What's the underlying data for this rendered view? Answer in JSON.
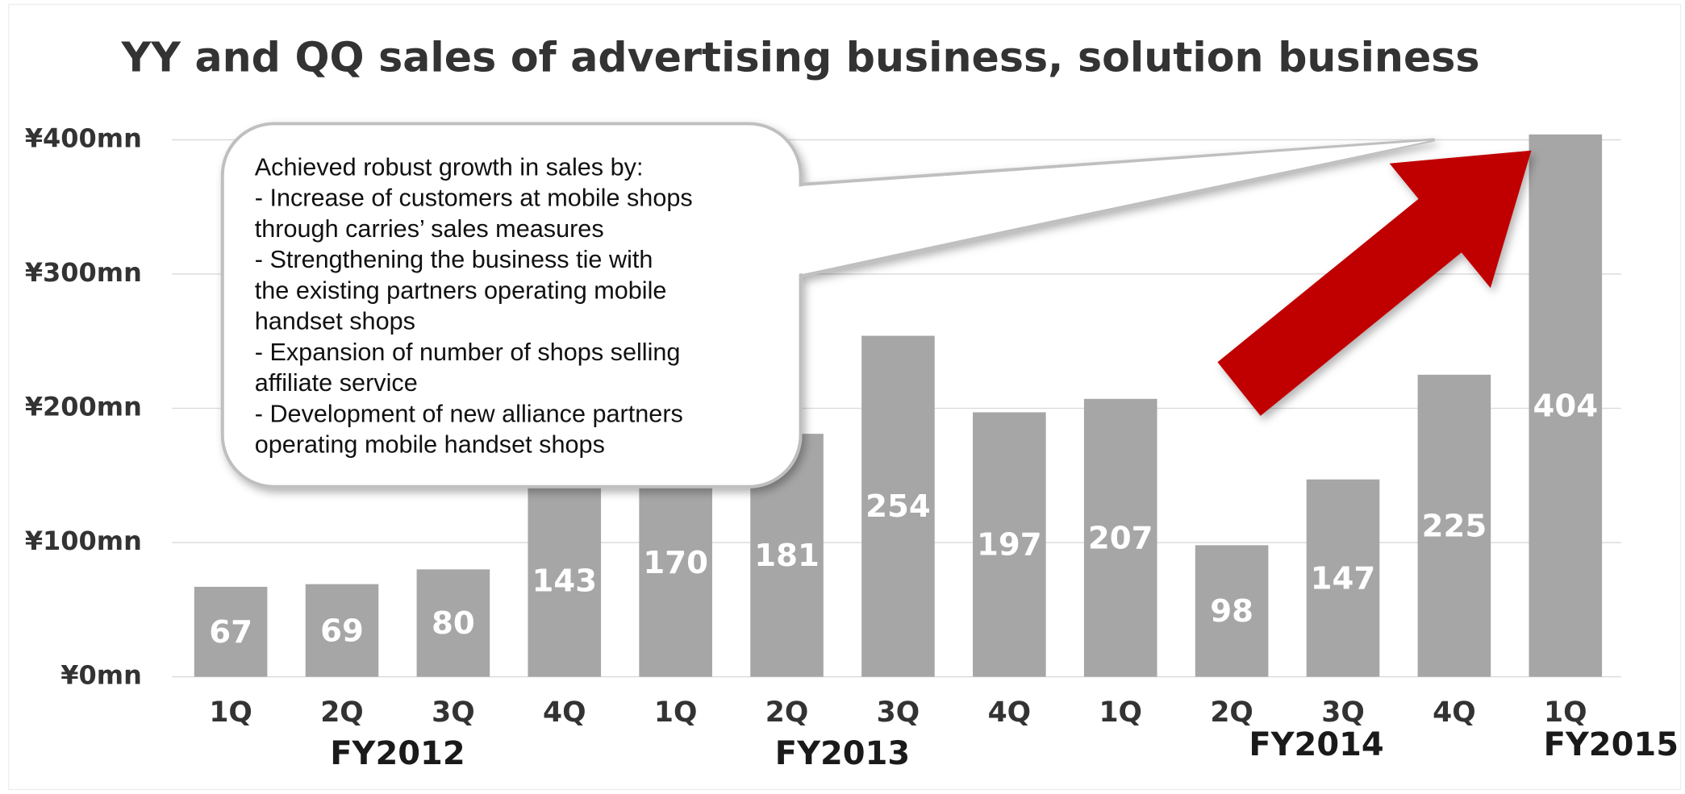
{
  "chart_data": {
    "type": "bar",
    "title": "YY and QQ sales of advertising business, solution business",
    "categories": [
      "1Q",
      "2Q",
      "3Q",
      "4Q",
      "1Q",
      "2Q",
      "3Q",
      "4Q",
      "1Q",
      "2Q",
      "3Q",
      "4Q",
      "1Q"
    ],
    "groups": [
      {
        "label": "FY2012",
        "span": [
          0,
          3
        ]
      },
      {
        "label": "FY2013",
        "span": [
          4,
          7
        ]
      },
      {
        "label": "FY2014",
        "span": [
          8,
          11
        ]
      },
      {
        "label": "FY2015",
        "span": [
          12,
          12
        ]
      }
    ],
    "values": [
      67,
      69,
      80,
      143,
      170,
      181,
      254,
      197,
      207,
      98,
      147,
      225,
      404
    ],
    "color": "#a6a6a6",
    "ylim": [
      0,
      400
    ],
    "yticks": [
      {
        "value": 0,
        "label": "¥0mn"
      },
      {
        "value": 100,
        "label": "¥100mn"
      },
      {
        "value": 200,
        "label": "¥200mn"
      },
      {
        "value": 300,
        "label": "¥300mn"
      },
      {
        "value": 400,
        "label": "¥400mn"
      }
    ],
    "grid": true,
    "annotation": [
      "Achieved robust growth in sales by:",
      "- Increase of customers at mobile shops",
      "through carries’ sales measures",
      "- Strengthening the business tie with",
      "the existing partners operating mobile",
      "handset shops",
      "- Expansion of number of shops selling",
      "affiliate service",
      "- Development of  new alliance partners",
      "operating mobile handset shops"
    ]
  }
}
